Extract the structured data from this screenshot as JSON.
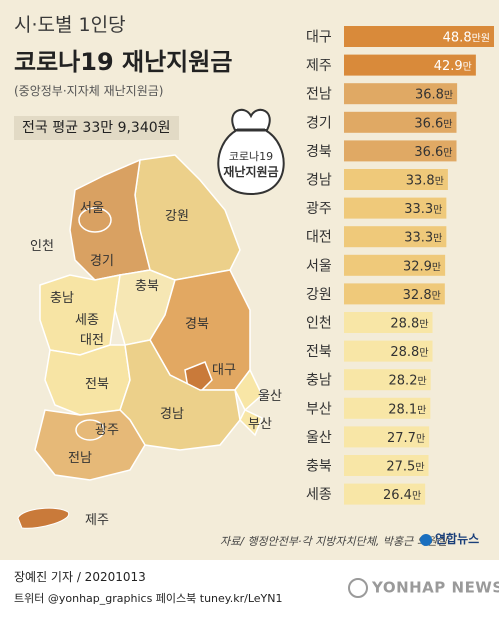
{
  "header": {
    "subtitle": "시·도별 1인당",
    "title": "코로나19 재난지원금",
    "source_note": "(중앙정부·지자체 재난지원금)",
    "avg_label": "전국 평균 33만 9,340원"
  },
  "bag_label": [
    "코로나19",
    "재난지원금"
  ],
  "map_labels": [
    "서울",
    "인천",
    "경기",
    "강원",
    "충남",
    "세종",
    "충북",
    "대전",
    "경북",
    "전북",
    "대구",
    "울산",
    "경남",
    "부산",
    "광주",
    "전남",
    "제주"
  ],
  "colors": {
    "background": "#f3ecd9",
    "bar_top": "#d98a3a",
    "bar_high": "#e0a964",
    "bar_mid": "#efc97a",
    "bar_low": "#f8e6a6",
    "map_daegu": "#c97a3a",
    "map_gyeongbuk": "#e2a862"
  },
  "chart_data": {
    "type": "bar",
    "orientation": "horizontal",
    "categories": [
      "대구",
      "제주",
      "전남",
      "경기",
      "경북",
      "경남",
      "광주",
      "대전",
      "서울",
      "강원",
      "인천",
      "전북",
      "충남",
      "부산",
      "울산",
      "충북",
      "세종"
    ],
    "values": [
      48.8,
      42.9,
      36.8,
      36.6,
      36.6,
      33.8,
      33.3,
      33.3,
      32.9,
      32.8,
      28.8,
      28.8,
      28.2,
      28.1,
      27.7,
      27.5,
      26.4
    ],
    "value_labels": [
      "48.8",
      "42.9",
      "36.8",
      "36.6",
      "36.6",
      "33.8",
      "33.3",
      "33.3",
      "32.9",
      "32.8",
      "28.8",
      "28.8",
      "28.2",
      "28.1",
      "27.7",
      "27.5",
      "26.4"
    ],
    "first_unit": "만원",
    "unit": "만"
  },
  "footer": {
    "source": "자료/ 행정안전부·각 지방자치단체, 박홍근 의원실",
    "logo": "연합뉴스",
    "credit": "장예진 기자 / 20201013",
    "social": "트위터 @yonhap_graphics  페이스북 tuney.kr/LeYN1",
    "watermark": "YONHAP NEWS"
  }
}
